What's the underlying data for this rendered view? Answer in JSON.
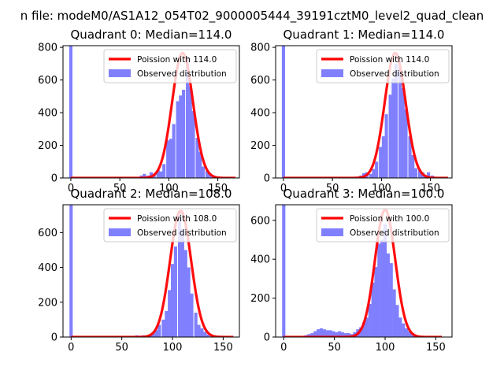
{
  "figure": {
    "suptitle": "n file: modeM0/AS1A12_054T02_9000005444_39191cztM0_level2_quad_clean"
  },
  "colors": {
    "poisson": "#ff0000",
    "observed": "#8080ff",
    "axes": "#000000",
    "background": "#ffffff"
  },
  "chart_data": [
    {
      "type": "bar",
      "title": "Quadrant 0: Median=114.0",
      "xlim": [
        -8,
        172
      ],
      "ylim": [
        0,
        810
      ],
      "xticks": [
        0,
        50,
        100,
        150
      ],
      "yticks": [
        0,
        200,
        400,
        600,
        800
      ],
      "legend_placement": "upper right",
      "series": [
        {
          "name": "Poission with 114.0",
          "kind": "line",
          "lambda": 114.0,
          "peak": 765,
          "x_range": [
            0,
            168
          ]
        },
        {
          "name": "Observed distribution",
          "kind": "histogram",
          "bin_width": 3.3,
          "bins": [
            {
              "x": 0,
              "y": 810
            },
            {
              "x": 72,
              "y": 15
            },
            {
              "x": 75,
              "y": 25
            },
            {
              "x": 79,
              "y": 15
            },
            {
              "x": 82,
              "y": 35
            },
            {
              "x": 85,
              "y": 25
            },
            {
              "x": 89,
              "y": 50
            },
            {
              "x": 92,
              "y": 40
            },
            {
              "x": 95,
              "y": 85
            },
            {
              "x": 99,
              "y": 230
            },
            {
              "x": 102,
              "y": 240
            },
            {
              "x": 105,
              "y": 330
            },
            {
              "x": 109,
              "y": 470
            },
            {
              "x": 112,
              "y": 505
            },
            {
              "x": 115,
              "y": 540
            },
            {
              "x": 119,
              "y": 740
            },
            {
              "x": 122,
              "y": 560
            },
            {
              "x": 125,
              "y": 410
            },
            {
              "x": 129,
              "y": 245
            },
            {
              "x": 132,
              "y": 160
            },
            {
              "x": 135,
              "y": 70
            },
            {
              "x": 139,
              "y": 45
            },
            {
              "x": 142,
              "y": 25
            },
            {
              "x": 145,
              "y": 15
            }
          ]
        }
      ]
    },
    {
      "type": "bar",
      "title": "Quadrant 1: Median=114.0",
      "xlim": [
        -8,
        172
      ],
      "ylim": [
        0,
        810
      ],
      "xticks": [
        0,
        50,
        100,
        150
      ],
      "yticks": [
        0,
        200,
        400,
        600,
        800
      ],
      "legend_placement": "upper right",
      "series": [
        {
          "name": "Poission with 114.0",
          "kind": "line",
          "lambda": 114.0,
          "peak": 765,
          "x_range": [
            0,
            168
          ]
        },
        {
          "name": "Observed distribution",
          "kind": "histogram",
          "bin_width": 3.3,
          "bins": [
            {
              "x": 0,
              "y": 810
            },
            {
              "x": 79,
              "y": 15
            },
            {
              "x": 82,
              "y": 30
            },
            {
              "x": 85,
              "y": 35
            },
            {
              "x": 89,
              "y": 25
            },
            {
              "x": 92,
              "y": 55
            },
            {
              "x": 95,
              "y": 100
            },
            {
              "x": 99,
              "y": 190
            },
            {
              "x": 102,
              "y": 255
            },
            {
              "x": 105,
              "y": 390
            },
            {
              "x": 109,
              "y": 510
            },
            {
              "x": 112,
              "y": 610
            },
            {
              "x": 115,
              "y": 700
            },
            {
              "x": 119,
              "y": 680
            },
            {
              "x": 122,
              "y": 550
            },
            {
              "x": 125,
              "y": 420
            },
            {
              "x": 129,
              "y": 255
            },
            {
              "x": 132,
              "y": 140
            },
            {
              "x": 135,
              "y": 60
            },
            {
              "x": 139,
              "y": 50
            },
            {
              "x": 142,
              "y": 35
            },
            {
              "x": 145,
              "y": 15
            },
            {
              "x": 148,
              "y": 35
            },
            {
              "x": 152,
              "y": 15
            }
          ]
        }
      ]
    },
    {
      "type": "bar",
      "title": "Quadrant 2: Median=108.0",
      "xlim": [
        -8,
        166
      ],
      "ylim": [
        0,
        760
      ],
      "xticks": [
        0,
        50,
        100,
        150
      ],
      "yticks": [
        0,
        200,
        400,
        600
      ],
      "legend_placement": "upper right",
      "series": [
        {
          "name": "Poission with 108.0",
          "kind": "line",
          "lambda": 108.0,
          "peak": 725,
          "x_range": [
            0,
            160
          ]
        },
        {
          "name": "Observed distribution",
          "kind": "histogram",
          "bin_width": 3.2,
          "bins": [
            {
              "x": 0,
              "y": 760
            },
            {
              "x": 65,
              "y": 10
            },
            {
              "x": 71,
              "y": 10
            },
            {
              "x": 78,
              "y": 15
            },
            {
              "x": 81,
              "y": 20
            },
            {
              "x": 84,
              "y": 40
            },
            {
              "x": 87,
              "y": 70
            },
            {
              "x": 91,
              "y": 100
            },
            {
              "x": 94,
              "y": 150
            },
            {
              "x": 97,
              "y": 270
            },
            {
              "x": 100,
              "y": 420
            },
            {
              "x": 103,
              "y": 520
            },
            {
              "x": 107,
              "y": 720
            },
            {
              "x": 110,
              "y": 620
            },
            {
              "x": 113,
              "y": 500
            },
            {
              "x": 116,
              "y": 400
            },
            {
              "x": 119,
              "y": 250
            },
            {
              "x": 123,
              "y": 140
            },
            {
              "x": 126,
              "y": 70
            },
            {
              "x": 129,
              "y": 50
            },
            {
              "x": 132,
              "y": 30
            },
            {
              "x": 135,
              "y": 15
            },
            {
              "x": 139,
              "y": 10
            }
          ]
        }
      ]
    },
    {
      "type": "bar",
      "title": "Quadrant 3: Median=100.0",
      "xlim": [
        -8,
        166
      ],
      "ylim": [
        0,
        680
      ],
      "xticks": [
        0,
        50,
        100,
        150
      ],
      "yticks": [
        0,
        200,
        400,
        600
      ],
      "legend_placement": "upper right",
      "series": [
        {
          "name": "Poission with 100.0",
          "kind": "line",
          "lambda": 100.0,
          "peak": 655,
          "x_range": [
            0,
            156
          ]
        },
        {
          "name": "Observed distribution",
          "kind": "histogram",
          "bin_width": 3.2,
          "bins": [
            {
              "x": 0,
              "y": 680
            },
            {
              "x": 22,
              "y": 10
            },
            {
              "x": 25,
              "y": 15
            },
            {
              "x": 28,
              "y": 20
            },
            {
              "x": 31,
              "y": 30
            },
            {
              "x": 34,
              "y": 40
            },
            {
              "x": 37,
              "y": 45
            },
            {
              "x": 40,
              "y": 40
            },
            {
              "x": 43,
              "y": 35
            },
            {
              "x": 46,
              "y": 35
            },
            {
              "x": 49,
              "y": 30
            },
            {
              "x": 52,
              "y": 25
            },
            {
              "x": 55,
              "y": 30
            },
            {
              "x": 58,
              "y": 25
            },
            {
              "x": 61,
              "y": 20
            },
            {
              "x": 64,
              "y": 20
            },
            {
              "x": 67,
              "y": 15
            },
            {
              "x": 70,
              "y": 25
            },
            {
              "x": 73,
              "y": 40
            },
            {
              "x": 76,
              "y": 50
            },
            {
              "x": 79,
              "y": 75
            },
            {
              "x": 82,
              "y": 100
            },
            {
              "x": 85,
              "y": 170
            },
            {
              "x": 88,
              "y": 280
            },
            {
              "x": 91,
              "y": 360
            },
            {
              "x": 94,
              "y": 480
            },
            {
              "x": 97,
              "y": 500
            },
            {
              "x": 100,
              "y": 580
            },
            {
              "x": 103,
              "y": 430
            },
            {
              "x": 106,
              "y": 380
            },
            {
              "x": 109,
              "y": 245
            },
            {
              "x": 112,
              "y": 165
            },
            {
              "x": 115,
              "y": 100
            },
            {
              "x": 118,
              "y": 70
            },
            {
              "x": 121,
              "y": 45
            },
            {
              "x": 124,
              "y": 30
            },
            {
              "x": 127,
              "y": 20
            },
            {
              "x": 130,
              "y": 10
            }
          ]
        }
      ]
    }
  ]
}
